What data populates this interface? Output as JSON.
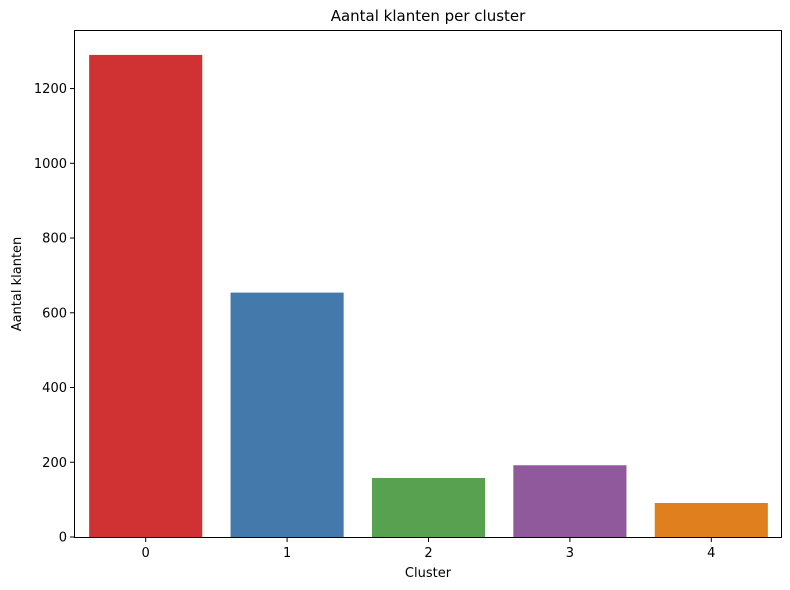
{
  "chart_data": {
    "type": "bar",
    "title": "Aantal klanten per cluster",
    "xlabel": "Cluster",
    "ylabel": "Aantal klanten",
    "categories": [
      "0",
      "1",
      "2",
      "3",
      "4"
    ],
    "values": [
      1290,
      654,
      158,
      192,
      91
    ],
    "colors": [
      "#d03234",
      "#4479ac",
      "#58a151",
      "#8f599b",
      "#e07f1e"
    ],
    "ylim": [
      0,
      1354
    ],
    "yticks": [
      0,
      200,
      400,
      600,
      800,
      1000,
      1200
    ],
    "grid": false,
    "legend": "none"
  }
}
